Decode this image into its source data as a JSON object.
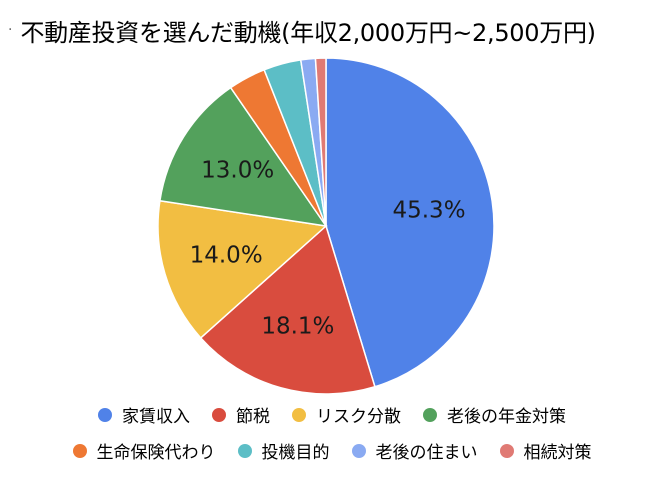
{
  "title": "不動産投資を選んだ動機(年収2,000万円~2,500万円)",
  "title_marker": "·",
  "chart_data": {
    "type": "pie",
    "title": "不動産投資を選んだ動機(年収2,000万円~2,500万円)",
    "legend_position": "bottom",
    "slices": [
      {
        "name": "家賃収入",
        "value": 45.3,
        "label": "45.3%",
        "color": "#5082e8"
      },
      {
        "name": "節税",
        "value": 18.1,
        "label": "18.1%",
        "color": "#d94c3e"
      },
      {
        "name": "リスク分散",
        "value": 14.0,
        "label": "14.0%",
        "color": "#f2be42"
      },
      {
        "name": "老後の年金対策",
        "value": 13.0,
        "label": "13.0%",
        "color": "#53a15c"
      },
      {
        "name": "生命保険代わり",
        "value": 3.6,
        "label": "",
        "color": "#ee7833"
      },
      {
        "name": "投機目的",
        "value": 3.6,
        "label": "",
        "color": "#5cbec6"
      },
      {
        "name": "老後の住まい",
        "value": 1.4,
        "label": "",
        "color": "#8aaaf2"
      },
      {
        "name": "相続対策",
        "value": 1.0,
        "label": "",
        "color": "#e07a74"
      }
    ]
  },
  "legend_rows": [
    [
      0,
      1,
      2,
      3
    ],
    [
      4,
      5,
      6,
      7
    ]
  ]
}
